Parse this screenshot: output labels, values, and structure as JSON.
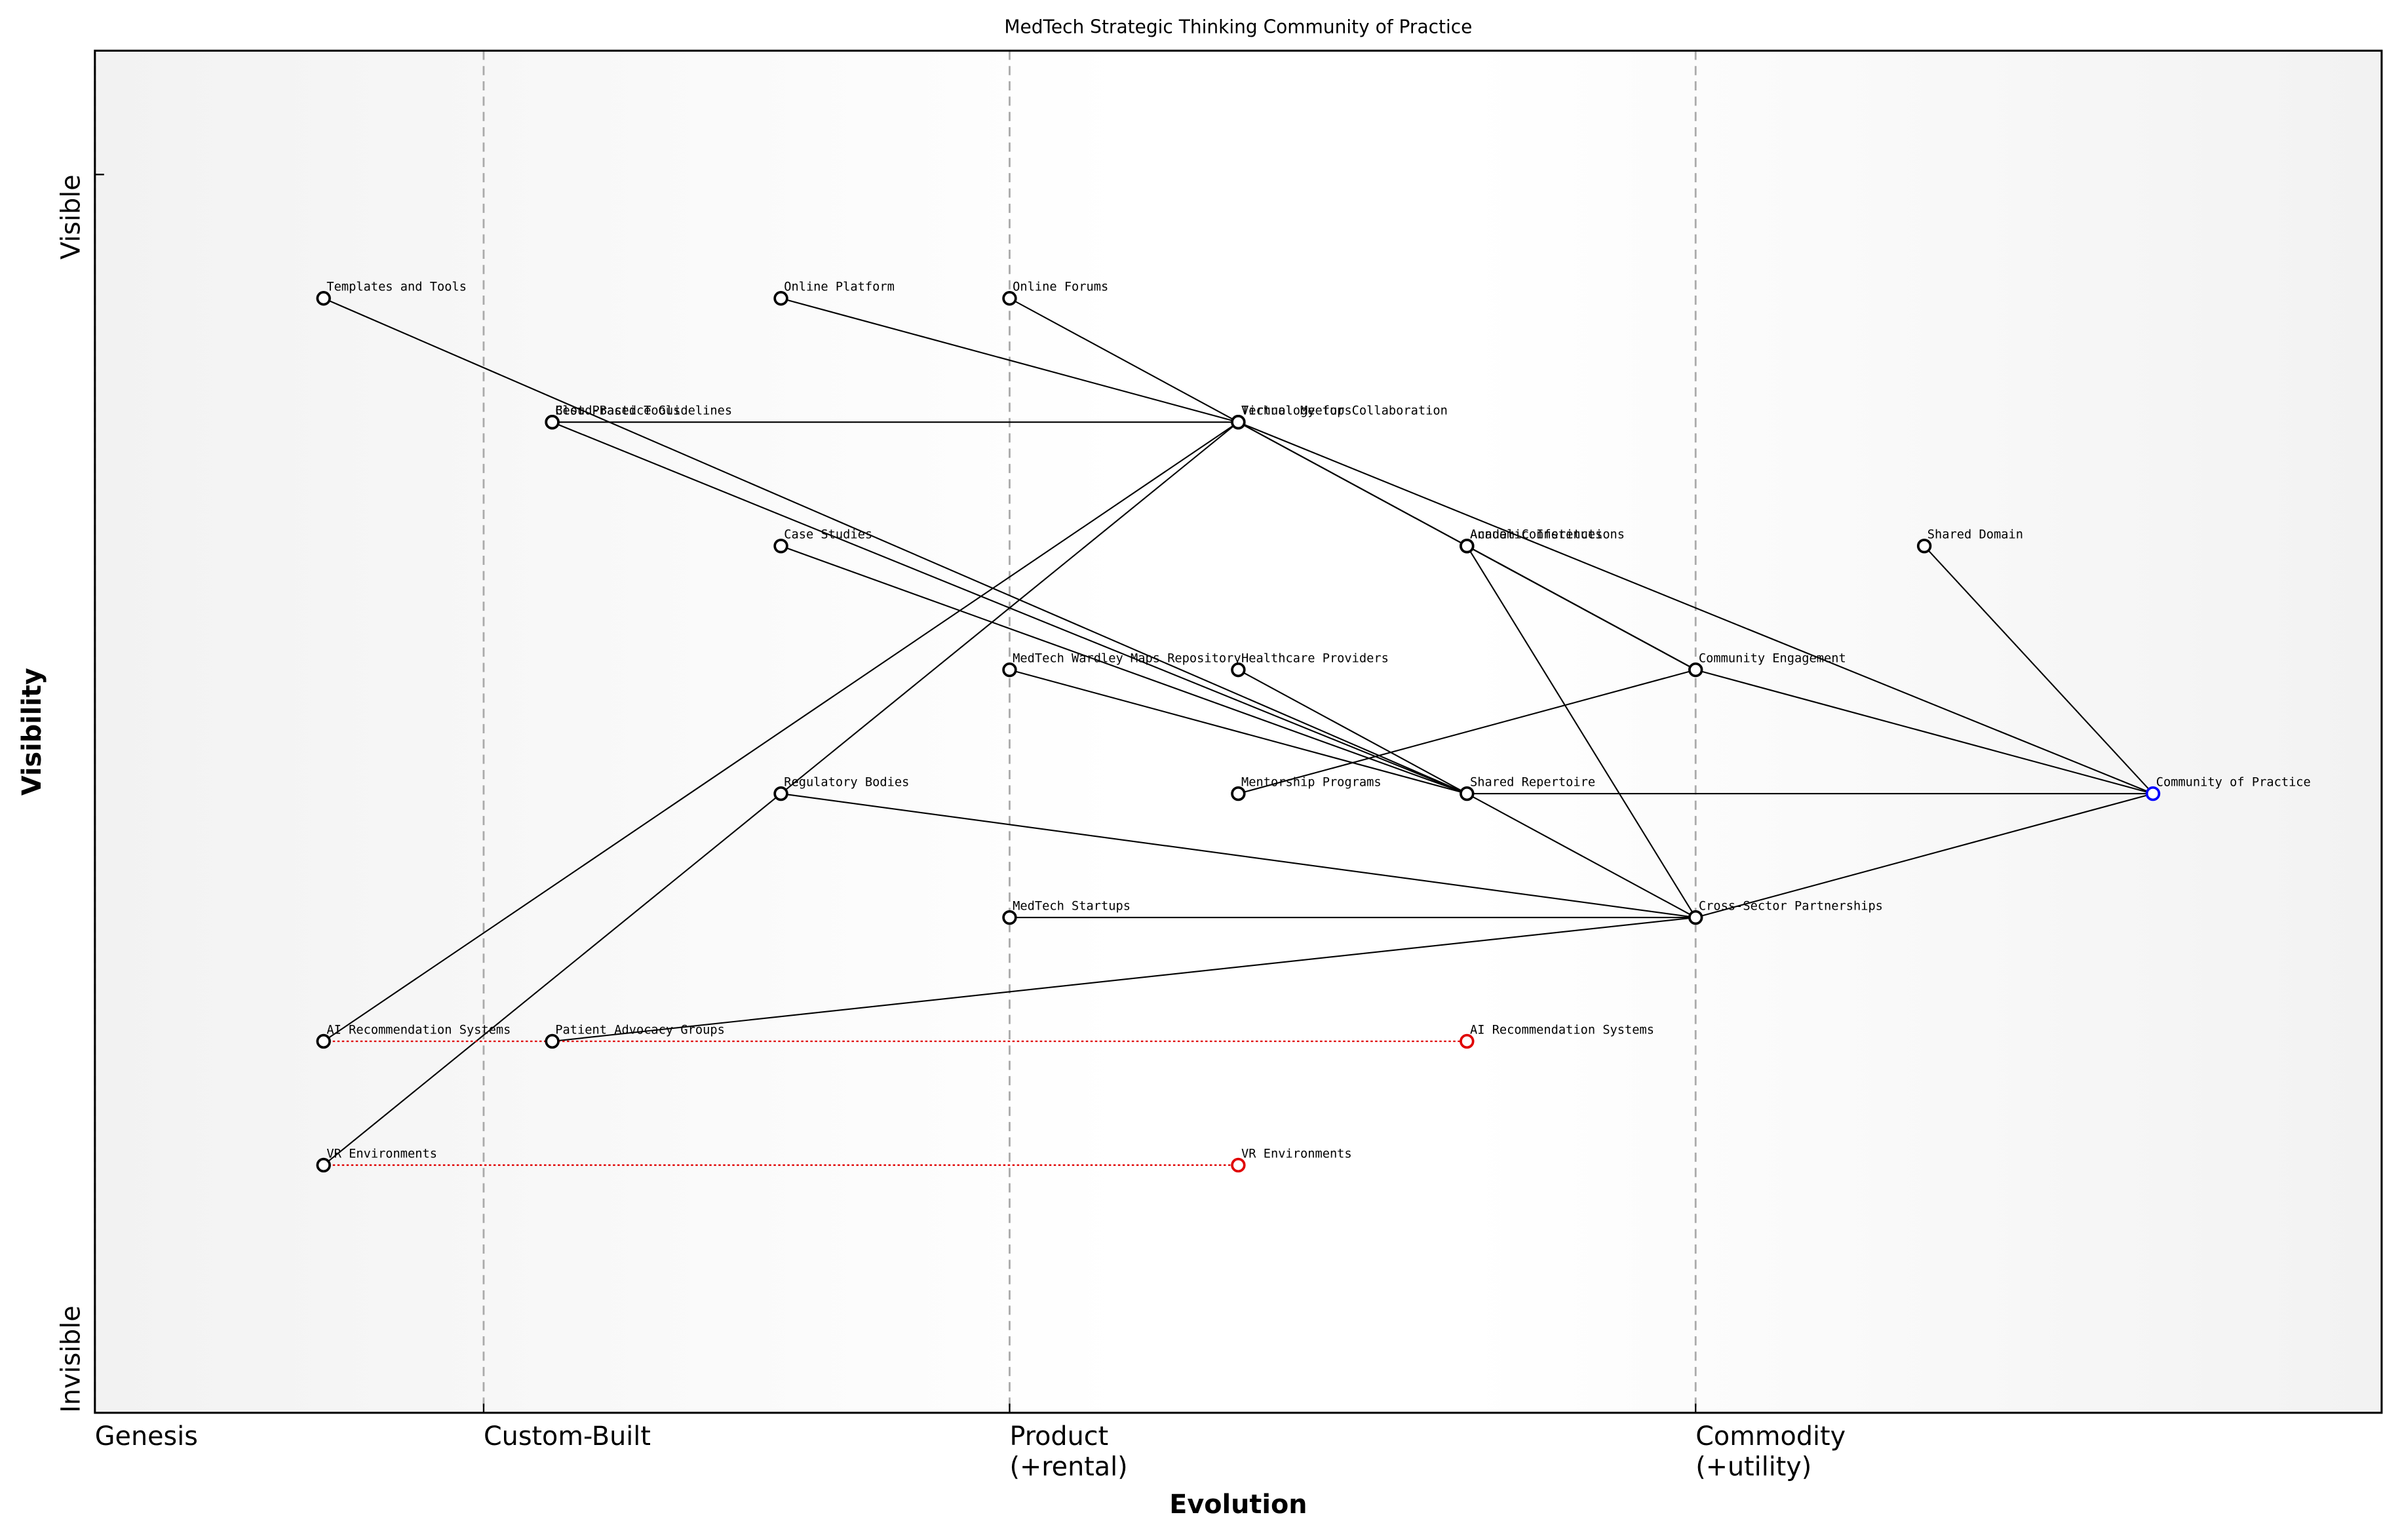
{
  "chart_data": {
    "type": "wardley",
    "title": "MedTech Strategic Thinking Community of Practice",
    "xlabel": "Evolution",
    "ylabel": "Visibility",
    "xlim": [
      0,
      1
    ],
    "ylim": [
      0,
      1.1
    ],
    "xticks": [
      {
        "value": 0,
        "label": "Genesis"
      },
      {
        "value": 0.17,
        "label": "Custom-Built"
      },
      {
        "value": 0.4,
        "label": "Product\n(+rental)"
      },
      {
        "value": 0.7,
        "label": "Commodity\n(+utility)"
      }
    ],
    "yticks": [
      {
        "value": 0,
        "label": "Invisible"
      },
      {
        "value": 1,
        "label": "Visible"
      }
    ],
    "color": "#000000",
    "components": [
      {
        "name": "Community of Practice",
        "x": 0.9,
        "y": 0.5,
        "color": "#0000ff"
      },
      {
        "name": "Shared Domain",
        "x": 0.8,
        "y": 0.7
      },
      {
        "name": "Community Engagement",
        "x": 0.7,
        "y": 0.6
      },
      {
        "name": "Shared Repertoire",
        "x": 0.6,
        "y": 0.5
      },
      {
        "name": "Cross-Sector Partnerships",
        "x": 0.7,
        "y": 0.4
      },
      {
        "name": "Technology for Collaboration",
        "x": 0.5,
        "y": 0.8
      },
      {
        "name": "Virtual Meetups",
        "x": 0.5,
        "y": 0.8
      },
      {
        "name": "Annual Conferences",
        "x": 0.6,
        "y": 0.7
      },
      {
        "name": "Academic Institutions",
        "x": 0.6,
        "y": 0.7
      },
      {
        "name": "Online Forums",
        "x": 0.4,
        "y": 0.9
      },
      {
        "name": "Online Platform",
        "x": 0.3,
        "y": 0.9
      },
      {
        "name": "Templates and Tools",
        "x": 0.1,
        "y": 0.9
      },
      {
        "name": "Best Practice Guidelines",
        "x": 0.2,
        "y": 0.8
      },
      {
        "name": "Cloud-Based Tools",
        "x": 0.2,
        "y": 0.8
      },
      {
        "name": "Case Studies",
        "x": 0.3,
        "y": 0.7
      },
      {
        "name": "MedTech Wardley Maps Repository",
        "x": 0.4,
        "y": 0.6
      },
      {
        "name": "Healthcare Providers",
        "x": 0.5,
        "y": 0.6
      },
      {
        "name": "Regulatory Bodies",
        "x": 0.3,
        "y": 0.5
      },
      {
        "name": "Mentorship Programs",
        "x": 0.5,
        "y": 0.5
      },
      {
        "name": "MedTech Startups",
        "x": 0.4,
        "y": 0.4
      },
      {
        "name": "AI Recommendation Systems",
        "x": 0.1,
        "y": 0.3
      },
      {
        "name": "Patient Advocacy Groups",
        "x": 0.2,
        "y": 0.3
      },
      {
        "name": "VR Environments",
        "x": 0.1,
        "y": 0.2
      }
    ],
    "links": [
      [
        "Community of Practice",
        "Shared Domain"
      ],
      [
        "Community of Practice",
        "Community Engagement"
      ],
      [
        "Community of Practice",
        "Shared Repertoire"
      ],
      [
        "Community of Practice",
        "Cross-Sector Partnerships"
      ],
      [
        "Community of Practice",
        "Technology for Collaboration"
      ],
      [
        "Community Engagement",
        "Online Forums"
      ],
      [
        "Community Engagement",
        "Virtual Meetups"
      ],
      [
        "Community Engagement",
        "Annual Conferences"
      ],
      [
        "Community Engagement",
        "Mentorship Programs"
      ],
      [
        "Shared Repertoire",
        "Templates and Tools"
      ],
      [
        "Shared Repertoire",
        "Best Practice Guidelines"
      ],
      [
        "Shared Repertoire",
        "Case Studies"
      ],
      [
        "Shared Repertoire",
        "MedTech Wardley Maps Repository"
      ],
      [
        "Cross-Sector Partnerships",
        "Healthcare Providers"
      ],
      [
        "Cross-Sector Partnerships",
        "Academic Institutions"
      ],
      [
        "Cross-Sector Partnerships",
        "Regulatory Bodies"
      ],
      [
        "Cross-Sector Partnerships",
        "MedTech Startups"
      ],
      [
        "Cross-Sector Partnerships",
        "Patient Advocacy Groups"
      ],
      [
        "Technology for Collaboration",
        "Online Platform"
      ],
      [
        "Technology for Collaboration",
        "Cloud-Based Tools"
      ],
      [
        "Technology for Collaboration",
        "AI Recommendation Systems"
      ],
      [
        "Technology for Collaboration",
        "VR Environments"
      ]
    ],
    "evolutions": [
      {
        "name": "AI Recommendation Systems",
        "from": 0.1,
        "x": 0.6,
        "y": 0.3,
        "color": "#e00000"
      },
      {
        "name": "VR Environments",
        "from": 0.1,
        "x": 0.5,
        "y": 0.2,
        "color": "#e00000"
      }
    ]
  }
}
